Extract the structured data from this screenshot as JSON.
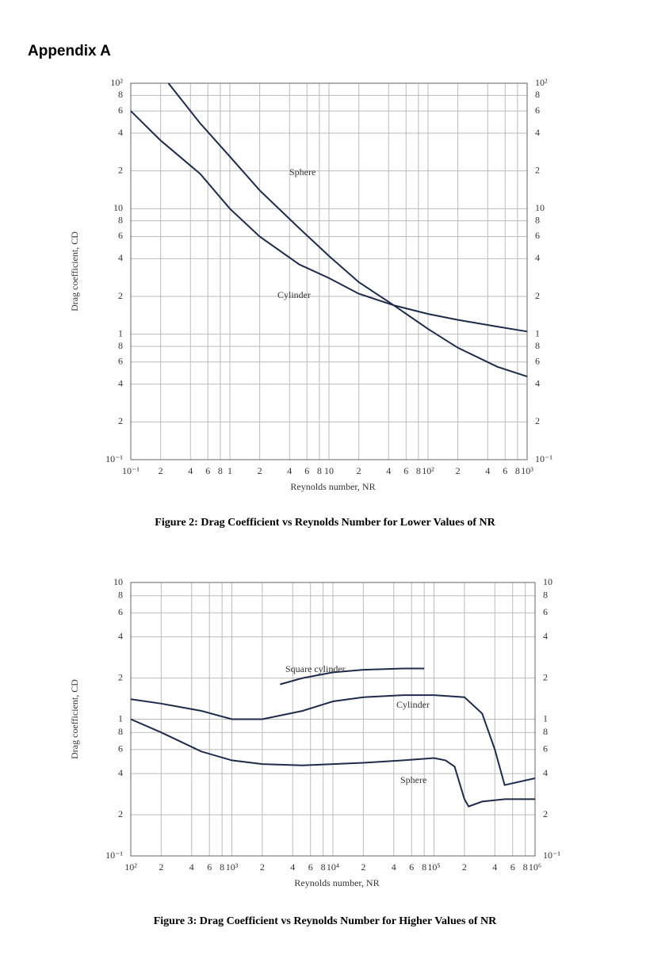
{
  "header": {
    "title": "Appendix A"
  },
  "chart_data": [
    {
      "type": "line",
      "caption": "Figure 2: Drag Coefficient vs Reynolds Number for Lower Values of NR",
      "xlabel": "Reynolds number, NR",
      "ylabel": "Drag coefficient, CD",
      "xscale": "log",
      "yscale": "log",
      "grid": true,
      "xlim": [
        0.1,
        1000
      ],
      "ylim": [
        0.1,
        100
      ],
      "xticks": [
        {
          "value": 0.1,
          "label": "10⁻¹"
        },
        {
          "value": 0.2,
          "label": "2"
        },
        {
          "value": 0.4,
          "label": "4"
        },
        {
          "value": 0.6,
          "label": "6"
        },
        {
          "value": 0.8,
          "label": "8"
        },
        1,
        2,
        4,
        6,
        8,
        10,
        {
          "value": 20,
          "label": "2"
        },
        {
          "value": 40,
          "label": "4"
        },
        {
          "value": 60,
          "label": "6"
        },
        {
          "value": 80,
          "label": "8"
        },
        {
          "value": 100,
          "label": "10²"
        },
        {
          "value": 200,
          "label": "2"
        },
        {
          "value": 400,
          "label": "4"
        },
        {
          "value": 600,
          "label": "6"
        },
        {
          "value": 800,
          "label": "8"
        },
        {
          "value": 1000,
          "label": "10³"
        }
      ],
      "yticks": [
        {
          "value": 0.1,
          "label": "10⁻¹"
        },
        {
          "value": 0.2,
          "label": "2"
        },
        {
          "value": 0.4,
          "label": "4"
        },
        {
          "value": 0.6,
          "label": "6"
        },
        {
          "value": 0.8,
          "label": "8"
        },
        1,
        2,
        4,
        6,
        8,
        10,
        {
          "value": 20,
          "label": "2"
        },
        {
          "value": 40,
          "label": "4"
        },
        {
          "value": 60,
          "label": "6"
        },
        {
          "value": 80,
          "label": "8"
        },
        {
          "value": 100,
          "label": "10²"
        }
      ],
      "series": [
        {
          "name": "Sphere",
          "color": "#1f2b4a",
          "x": [
            0.24,
            0.5,
            1,
            2,
            5,
            10,
            20,
            45,
            100,
            200,
            500,
            1000
          ],
          "values": [
            100,
            48,
            26,
            14,
            7,
            4.2,
            2.6,
            1.7,
            1.1,
            0.78,
            0.55,
            0.46
          ]
        },
        {
          "name": "Cylinder",
          "color": "#1f2b4a",
          "x": [
            0.1,
            0.2,
            0.5,
            1,
            2,
            5,
            10,
            20,
            45,
            100,
            200,
            500,
            1000
          ],
          "values": [
            60,
            35,
            19,
            10,
            6,
            3.6,
            2.8,
            2.1,
            1.7,
            1.45,
            1.3,
            1.15,
            1.05
          ]
        }
      ]
    },
    {
      "type": "line",
      "caption": "Figure 3: Drag Coefficient vs Reynolds Number for Higher Values of NR",
      "xlabel": "Reynolds number, NR",
      "ylabel": "Drag coefficient, CD",
      "xscale": "log",
      "yscale": "log",
      "grid": true,
      "xlim": [
        100,
        1000000
      ],
      "ylim": [
        0.1,
        10
      ],
      "xticks": [
        {
          "value": 100,
          "label": "10²"
        },
        {
          "value": 200,
          "label": "2"
        },
        {
          "value": 400,
          "label": "4"
        },
        {
          "value": 600,
          "label": "6"
        },
        {
          "value": 800,
          "label": "8"
        },
        {
          "value": 1000,
          "label": "10³"
        },
        {
          "value": 2000,
          "label": "2"
        },
        {
          "value": 4000,
          "label": "4"
        },
        {
          "value": 6000,
          "label": "6"
        },
        {
          "value": 8000,
          "label": "8"
        },
        {
          "value": 10000,
          "label": "10⁴"
        },
        {
          "value": 20000,
          "label": "2"
        },
        {
          "value": 40000,
          "label": "4"
        },
        {
          "value": 60000,
          "label": "6"
        },
        {
          "value": 80000,
          "label": "8"
        },
        {
          "value": 100000,
          "label": "10⁵"
        },
        {
          "value": 200000,
          "label": "2"
        },
        {
          "value": 400000,
          "label": "4"
        },
        {
          "value": 600000,
          "label": "6"
        },
        {
          "value": 800000,
          "label": "8"
        },
        {
          "value": 1000000,
          "label": "10⁶"
        }
      ],
      "yticks": [
        {
          "value": 0.1,
          "label": "10⁻¹"
        },
        {
          "value": 0.2,
          "label": "2"
        },
        {
          "value": 0.4,
          "label": "4"
        },
        {
          "value": 0.6,
          "label": "6"
        },
        {
          "value": 0.8,
          "label": "8"
        },
        1,
        2,
        4,
        6,
        8,
        10
      ],
      "series": [
        {
          "name": "Square cylinder",
          "color": "#1f2b4a",
          "x": [
            3000,
            5000,
            10000,
            20000,
            50000,
            80000
          ],
          "values": [
            1.8,
            2.0,
            2.2,
            2.3,
            2.35,
            2.35
          ]
        },
        {
          "name": "Cylinder",
          "color": "#1f2b4a",
          "x": [
            100,
            200,
            500,
            1000,
            2000,
            5000,
            10000,
            20000,
            50000,
            100000,
            200000,
            300000,
            400000,
            500000,
            600000,
            1000000
          ],
          "values": [
            1.4,
            1.3,
            1.15,
            1.0,
            1.0,
            1.15,
            1.35,
            1.45,
            1.5,
            1.5,
            1.45,
            1.1,
            0.6,
            0.33,
            0.34,
            0.37
          ]
        },
        {
          "name": "Sphere",
          "color": "#1f2b4a",
          "x": [
            100,
            200,
            500,
            1000,
            2000,
            5000,
            10000,
            20000,
            50000,
            100000,
            130000,
            160000,
            200000,
            220000,
            300000,
            500000,
            1000000
          ],
          "values": [
            1.0,
            0.8,
            0.58,
            0.5,
            0.47,
            0.46,
            0.47,
            0.48,
            0.5,
            0.52,
            0.5,
            0.45,
            0.26,
            0.23,
            0.25,
            0.26,
            0.26
          ]
        }
      ]
    }
  ]
}
